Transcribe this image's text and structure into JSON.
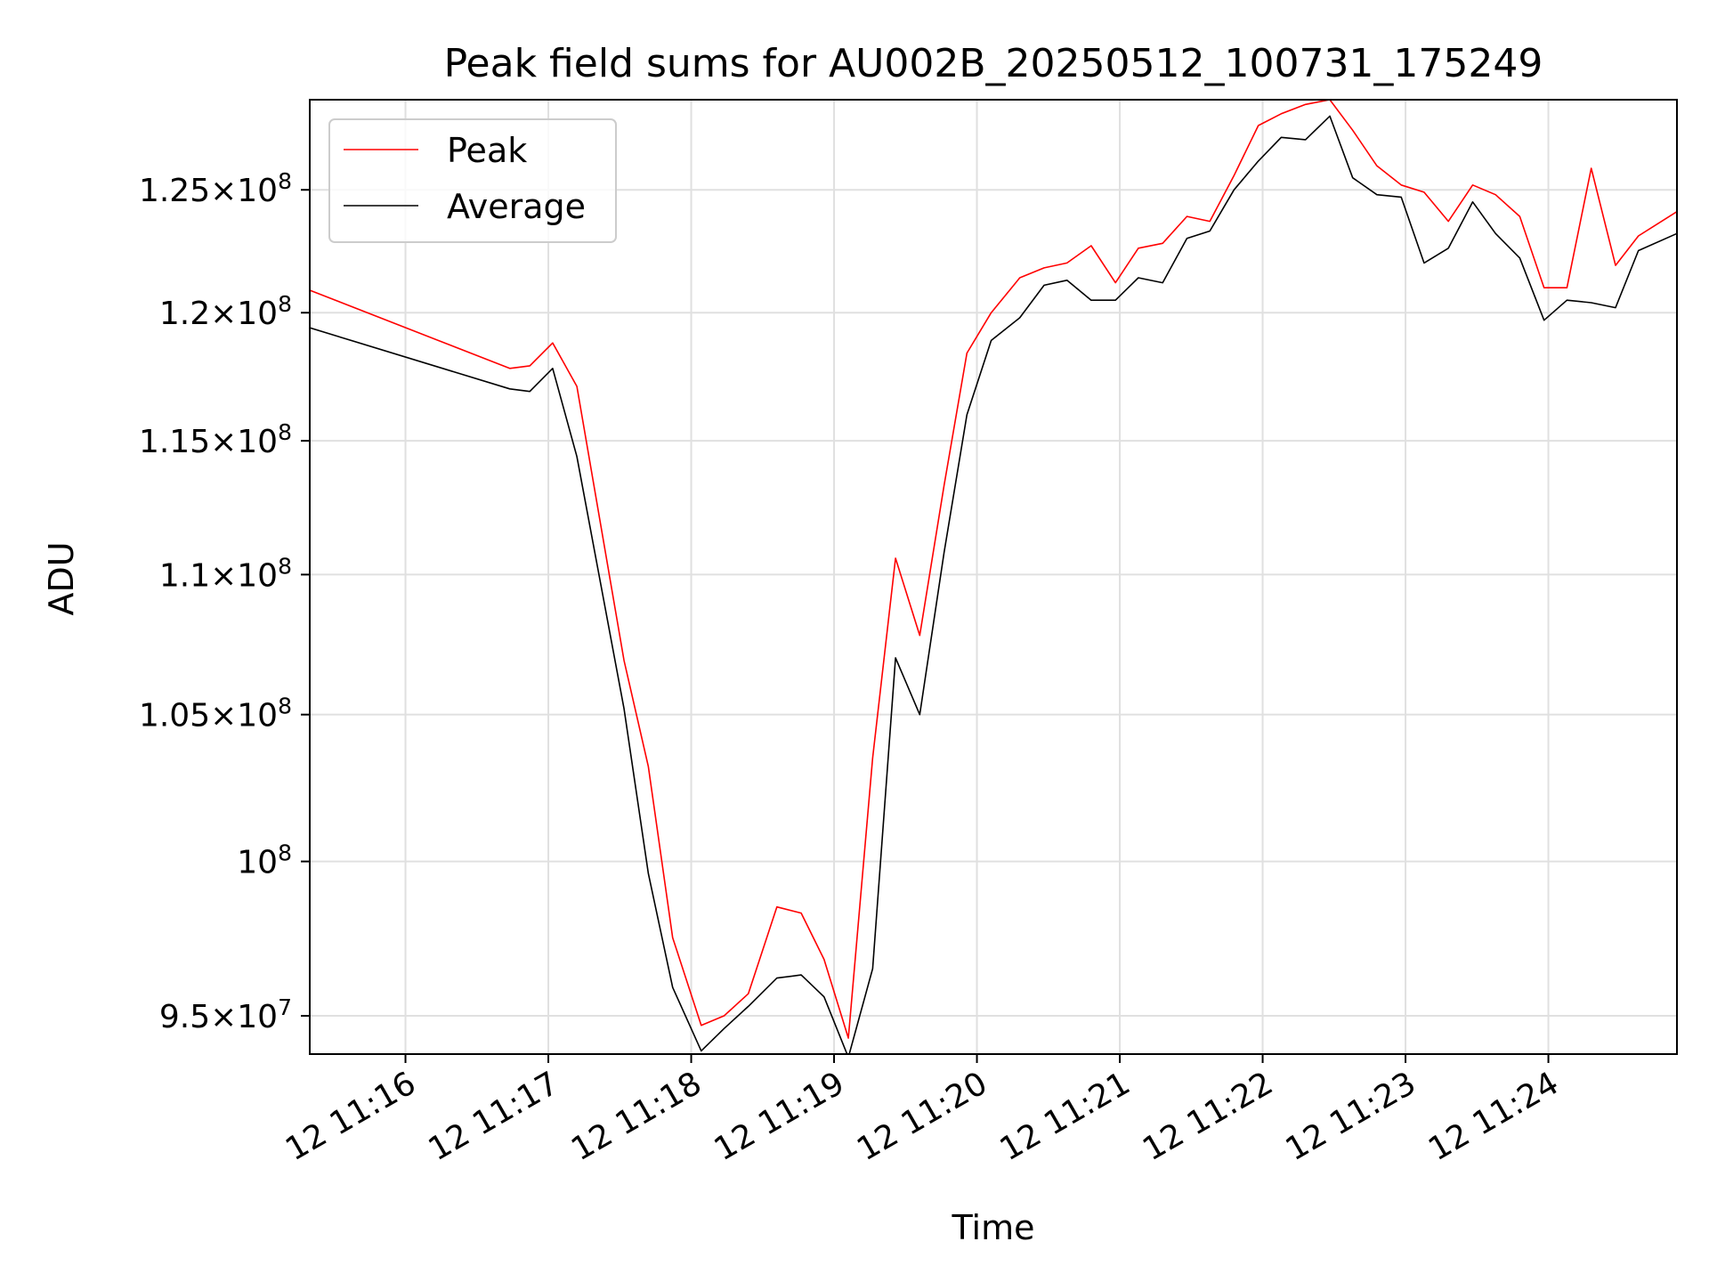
{
  "chart_data": {
    "type": "line",
    "title": "Peak field sums for AU002B_20250512_100731_175249",
    "xlabel": "Time",
    "ylabel": "ADU",
    "y_scale": "log",
    "ylim": [
      93800000,
      128800000
    ],
    "x_unit": "minutes past 12 11:00",
    "xlim": [
      15.33,
      24.9
    ],
    "grid": true,
    "legend_position": "upper left",
    "x_ticks": [
      {
        "value": 16,
        "label": "12 11:16"
      },
      {
        "value": 17,
        "label": "12 11:17"
      },
      {
        "value": 18,
        "label": "12 11:18"
      },
      {
        "value": 19,
        "label": "12 11:19"
      },
      {
        "value": 20,
        "label": "12 11:20"
      },
      {
        "value": 21,
        "label": "12 11:21"
      },
      {
        "value": 22,
        "label": "12 11:22"
      },
      {
        "value": 23,
        "label": "12 11:23"
      },
      {
        "value": 24,
        "label": "12 11:24"
      }
    ],
    "y_ticks": [
      {
        "value": 95000000,
        "mantissa": "9.5",
        "exp": "7"
      },
      {
        "value": 100000000,
        "mantissa": "",
        "exp": "8"
      },
      {
        "value": 105000000,
        "mantissa": "1.05",
        "exp": "8"
      },
      {
        "value": 110000000,
        "mantissa": "1.1",
        "exp": "8"
      },
      {
        "value": 115000000,
        "mantissa": "1.15",
        "exp": "8"
      },
      {
        "value": 120000000,
        "mantissa": "1.2",
        "exp": "8"
      },
      {
        "value": 125000000,
        "mantissa": "1.25",
        "exp": "8"
      }
    ],
    "series": [
      {
        "name": "Peak",
        "color": "#ff0000",
        "x": [
          15.33,
          16.73,
          16.87,
          17.03,
          17.2,
          17.53,
          17.7,
          17.87,
          18.07,
          18.23,
          18.4,
          18.6,
          18.77,
          18.93,
          19.1,
          19.27,
          19.43,
          19.6,
          19.77,
          19.93,
          20.1,
          20.3,
          20.47,
          20.63,
          20.8,
          20.97,
          21.13,
          21.3,
          21.47,
          21.63,
          21.8,
          21.97,
          22.13,
          22.3,
          22.47,
          22.63,
          22.8,
          22.97,
          23.13,
          23.3,
          23.47,
          23.63,
          23.8,
          23.97,
          24.13,
          24.3,
          24.47,
          24.63,
          24.9
        ],
        "y": [
          120900000,
          117800000,
          117900000,
          118800000,
          117100000,
          106900000,
          103200000,
          97500000,
          94700000,
          95000000,
          95700000,
          98500000,
          98300000,
          96800000,
          94300000,
          103500000,
          110600000,
          107800000,
          113300000,
          118400000,
          120000000,
          121400000,
          121800000,
          122000000,
          122700000,
          121200000,
          122600000,
          122800000,
          123900000,
          123700000,
          125600000,
          127700000,
          128200000,
          128600000,
          128800000,
          127500000,
          126000000,
          125200000,
          124900000,
          123700000,
          125200000,
          124800000,
          123900000,
          121000000,
          121000000,
          125900000,
          121900000,
          123100000,
          124100000
        ]
      },
      {
        "name": "Average",
        "color": "#000000",
        "x": [
          15.33,
          16.73,
          16.87,
          17.03,
          17.2,
          17.53,
          17.7,
          17.87,
          18.07,
          18.23,
          18.4,
          18.6,
          18.77,
          18.93,
          19.1,
          19.27,
          19.43,
          19.6,
          19.77,
          19.93,
          20.1,
          20.3,
          20.47,
          20.63,
          20.8,
          20.97,
          21.13,
          21.3,
          21.47,
          21.63,
          21.8,
          21.97,
          22.13,
          22.3,
          22.47,
          22.63,
          22.8,
          22.97,
          23.13,
          23.3,
          23.47,
          23.63,
          23.8,
          23.97,
          24.13,
          24.3,
          24.47,
          24.63,
          24.9
        ],
        "y": [
          119400000,
          117000000,
          116900000,
          117800000,
          114400000,
          105200000,
          99600000,
          95900000,
          93900000,
          94600000,
          95300000,
          96200000,
          96300000,
          95600000,
          93700000,
          96500000,
          107000000,
          105000000,
          110800000,
          116000000,
          118900000,
          119800000,
          121100000,
          121300000,
          120500000,
          120500000,
          121400000,
          121200000,
          123000000,
          123300000,
          125000000,
          126200000,
          127200000,
          127100000,
          128100000,
          125500000,
          124800000,
          124700000,
          122000000,
          122600000,
          124500000,
          123200000,
          122200000,
          119700000,
          120500000,
          120400000,
          120200000,
          122500000,
          123200000
        ]
      }
    ]
  }
}
